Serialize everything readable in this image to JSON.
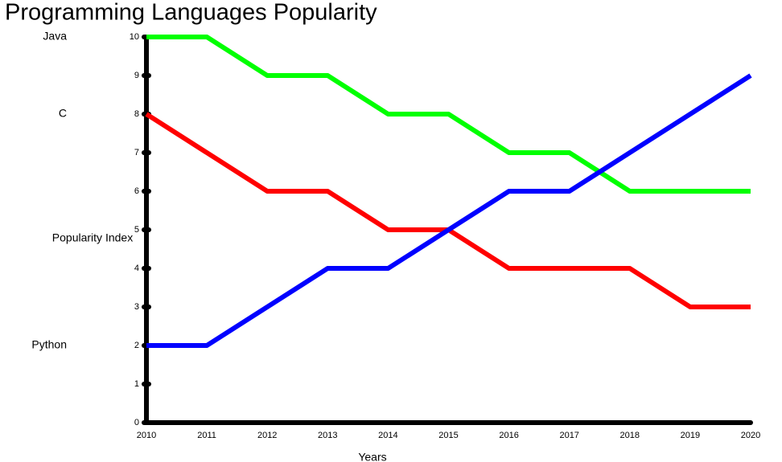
{
  "chart_data": {
    "type": "line",
    "title": "Programming Languages Popularity",
    "x_label": "Years",
    "y_label": "Popularity Index",
    "x": [
      2010,
      2011,
      2012,
      2013,
      2014,
      2015,
      2016,
      2017,
      2018,
      2019,
      2020
    ],
    "series": [
      {
        "name": "Java",
        "color": "#00ff00",
        "values": [
          10,
          10,
          9,
          9,
          8,
          8,
          7,
          7,
          6,
          6,
          6
        ]
      },
      {
        "name": "C",
        "color": "#ff0000",
        "values": [
          8,
          7,
          6,
          6,
          5,
          5,
          4,
          4,
          4,
          3,
          3
        ]
      },
      {
        "name": "Python",
        "color": "#0000ff",
        "values": [
          2,
          2,
          3,
          4,
          4,
          5,
          6,
          6,
          7,
          8,
          9
        ]
      }
    ],
    "xlim": [
      2010,
      2020
    ],
    "xticks": [
      2010,
      2011,
      2012,
      2013,
      2014,
      2015,
      2016,
      2017,
      2018,
      2019,
      2020
    ],
    "ylim": [
      0,
      10
    ],
    "yticks": [
      0,
      1,
      2,
      3,
      4,
      5,
      6,
      7,
      8,
      9,
      10
    ],
    "grid": false
  }
}
